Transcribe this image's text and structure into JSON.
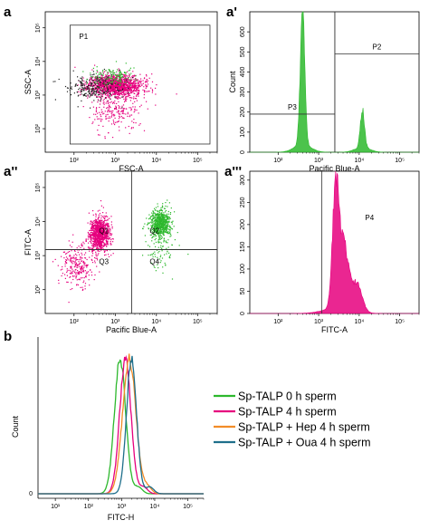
{
  "chart_data": [
    {
      "id": "a",
      "type": "scatter",
      "panel_label": "a",
      "xlabel": "FSC-A",
      "ylabel": "SSC-A",
      "x_scale": "log",
      "y_scale": "log",
      "xlim": [
        20,
        300000
      ],
      "ylim": [
        20,
        300000
      ],
      "x_ticks": [
        {
          "v": 100,
          "l": "10²"
        },
        {
          "v": 1000,
          "l": "10³"
        },
        {
          "v": 10000,
          "l": "10⁴"
        },
        {
          "v": 100000,
          "l": "10⁵"
        }
      ],
      "y_ticks": [
        {
          "v": 100,
          "l": "10²"
        },
        {
          "v": 1000,
          "l": "10³"
        },
        {
          "v": 10000,
          "l": "10⁴"
        },
        {
          "v": 100000,
          "l": "10⁵"
        }
      ],
      "gates": [
        {
          "label": "P1",
          "x": [
            80,
            200000
          ],
          "y": [
            35,
            120000
          ]
        }
      ],
      "clusters": [
        {
          "cx": 1000,
          "cy": 2000,
          "sx": 0.32,
          "sy": 0.16,
          "n": 1500,
          "color": "#e6007e"
        },
        {
          "cx": 300,
          "cy": 1700,
          "sx": 0.35,
          "sy": 0.2,
          "n": 260,
          "color": "#222222"
        },
        {
          "cx": 900,
          "cy": 3500,
          "sx": 0.28,
          "sy": 0.14,
          "n": 150,
          "color": "#2db82d"
        },
        {
          "cx": 1000,
          "cy": 350,
          "sx": 0.3,
          "sy": 0.3,
          "n": 220,
          "color": "#e6007e"
        }
      ]
    },
    {
      "id": "a1",
      "type": "histogram",
      "panel_label": "a'",
      "xlabel": "Pacific Blue-A",
      "ylabel": "Count",
      "x_scale": "log",
      "xlim": [
        20,
        300000
      ],
      "ylim": [
        0,
        700
      ],
      "x_ticks": [
        {
          "v": 100,
          "l": "10²"
        },
        {
          "v": 1000,
          "l": "10³"
        },
        {
          "v": 10000,
          "l": "10⁴"
        },
        {
          "v": 100000,
          "l": "10⁵"
        }
      ],
      "y_ticks": [
        {
          "v": 0,
          "l": "0"
        },
        {
          "v": 100,
          "l": "100"
        },
        {
          "v": 200,
          "l": "200"
        },
        {
          "v": 300,
          "l": "300"
        },
        {
          "v": 400,
          "l": "400"
        },
        {
          "v": 500,
          "l": "500"
        },
        {
          "v": 600,
          "l": "600"
        }
      ],
      "color": "#2db82d",
      "gates": [
        {
          "label": "P3",
          "x": [
            20,
            2500
          ],
          "level": 190
        },
        {
          "label": "P2",
          "x": [
            2500,
            300000
          ],
          "level": 490
        }
      ],
      "peaks": [
        {
          "center": 400,
          "width": 0.055,
          "height": 660
        },
        {
          "center": 400,
          "width": 0.2,
          "height": 40
        },
        {
          "center": 12000,
          "width": 0.05,
          "height": 190
        },
        {
          "center": 12000,
          "width": 0.18,
          "height": 25
        }
      ]
    },
    {
      "id": "a2",
      "type": "scatter",
      "panel_label": "a''",
      "xlabel": "Pacific Blue-A",
      "ylabel": "FITC-A",
      "x_scale": "log",
      "y_scale": "log",
      "xlim": [
        20,
        300000
      ],
      "ylim": [
        20,
        300000
      ],
      "x_ticks": [
        {
          "v": 100,
          "l": "10²"
        },
        {
          "v": 1000,
          "l": "10³"
        },
        {
          "v": 10000,
          "l": "10⁴"
        },
        {
          "v": 100000,
          "l": "10⁵"
        }
      ],
      "y_ticks": [
        {
          "v": 100,
          "l": "10²"
        },
        {
          "v": 1000,
          "l": "10³"
        },
        {
          "v": 10000,
          "l": "10⁴"
        },
        {
          "v": 100000,
          "l": "10⁵"
        }
      ],
      "quadrants": {
        "x": 2500,
        "y": 1500,
        "labels": [
          "Q1",
          "Q2",
          "Q3",
          "Q4"
        ]
      },
      "clusters": [
        {
          "cx": 400,
          "cy": 4500,
          "sx": 0.12,
          "sy": 0.24,
          "n": 1000,
          "color": "#e6007e"
        },
        {
          "cx": 120,
          "cy": 500,
          "sx": 0.22,
          "sy": 0.32,
          "n": 260,
          "color": "#e6007e"
        },
        {
          "cx": 12000,
          "cy": 9000,
          "sx": 0.13,
          "sy": 0.22,
          "n": 700,
          "color": "#2db82d"
        },
        {
          "cx": 12000,
          "cy": 1200,
          "sx": 0.2,
          "sy": 0.3,
          "n": 70,
          "color": "#2db82d"
        }
      ]
    },
    {
      "id": "a3",
      "type": "histogram",
      "panel_label": "a'''",
      "xlabel": "FITC-A",
      "ylabel": "",
      "x_scale": "log",
      "xlim": [
        20,
        300000
      ],
      "ylim": [
        0,
        320
      ],
      "x_ticks": [
        {
          "v": 100,
          "l": "10²"
        },
        {
          "v": 1000,
          "l": "10³"
        },
        {
          "v": 10000,
          "l": "10⁴"
        },
        {
          "v": 100000,
          "l": "10⁵"
        }
      ],
      "y_ticks": [
        {
          "v": 0,
          "l": "0"
        },
        {
          "v": 50,
          "l": "50"
        },
        {
          "v": 100,
          "l": "100"
        },
        {
          "v": 150,
          "l": "150"
        },
        {
          "v": 200,
          "l": "200"
        },
        {
          "v": 250,
          "l": "250"
        },
        {
          "v": 300,
          "l": "300"
        }
      ],
      "color": "#e6007e",
      "gates": [
        {
          "label": "P4",
          "x": [
            1200,
            300000
          ]
        }
      ],
      "peaks": [
        {
          "center": 2600,
          "width": 0.075,
          "height": 240
        },
        {
          "center": 4000,
          "width": 0.13,
          "height": 150
        },
        {
          "center": 9000,
          "width": 0.12,
          "height": 60
        },
        {
          "center": 3000,
          "width": 0.35,
          "height": 12
        }
      ]
    },
    {
      "id": "b",
      "type": "line",
      "panel_label": "b",
      "xlabel": "FITC-H",
      "ylabel": "Count",
      "x_scale": "log",
      "xlim": [
        3,
        300000
      ],
      "ylim": [
        0,
        1
      ],
      "x_ticks": [
        {
          "v": 10,
          "l": "10¹"
        },
        {
          "v": 100,
          "l": "10²"
        },
        {
          "v": 1000,
          "l": "10³"
        },
        {
          "v": 10000,
          "l": "10⁴"
        },
        {
          "v": 100000,
          "l": "10⁵"
        }
      ],
      "y_ticks": [
        {
          "v": 0,
          "l": "0"
        }
      ],
      "series": [
        {
          "name": "Sp-TALP 0 h sperm",
          "color": "#2db82d",
          "peak": 900,
          "width": 0.17
        },
        {
          "name": "Sp-TALP 4 h sperm",
          "color": "#e6007e",
          "peak": 1300,
          "width": 0.17
        },
        {
          "name": "Sp-TALP + Hep 4 h sperm",
          "color": "#f28c28",
          "peak": 1700,
          "width": 0.2
        },
        {
          "name": "Sp-TALP + Oua 4 h sperm",
          "color": "#1f6f8b",
          "peak": 2000,
          "width": 0.15
        }
      ]
    }
  ]
}
